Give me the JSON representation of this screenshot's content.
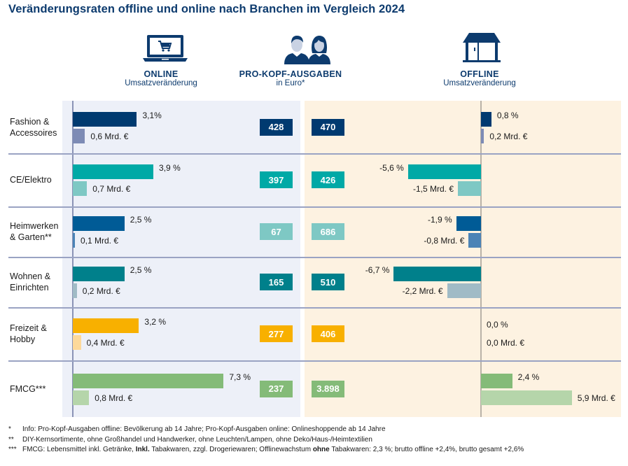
{
  "title": "Veränderungsraten offline und online nach Branchen im Vergleich 2024",
  "headers": {
    "online": {
      "title": "ONLINE",
      "subtitle": "Umsatzveränderung",
      "icon": "laptop-cart-icon"
    },
    "per_capita": {
      "title": "PRO-KOPF-AUSGABEN",
      "subtitle": "in Euro*",
      "icon": "people-icon"
    },
    "offline": {
      "title": "OFFLINE",
      "subtitle": "Umsatzveränderung",
      "icon": "store-icon"
    }
  },
  "chart_data": {
    "type": "bar",
    "title": "Veränderungsraten offline und online nach Branchen im Vergleich 2024",
    "categories": [
      "Fashion & Accessoires",
      "CE/Elektro",
      "Heimwerken & Garten**",
      "Wohnen & Einrichten",
      "Freizeit & Hobby",
      "FMCG***"
    ],
    "series": [
      {
        "name": "Online Umsatzveränderung (%)",
        "values": [
          3.1,
          3.9,
          2.5,
          2.5,
          3.2,
          7.3
        ],
        "labels": [
          "3,1%",
          "3,9 %",
          "2,5 %",
          "2,5 %",
          "3,2 %",
          "7,3 %"
        ]
      },
      {
        "name": "Online Umsatzveränderung (Mrd. €)",
        "values": [
          0.6,
          0.7,
          0.1,
          0.2,
          0.4,
          0.8
        ],
        "labels": [
          "0,6 Mrd. €",
          "0,7 Mrd. €",
          "0,1 Mrd. €",
          "0,2 Mrd. €",
          "0,4 Mrd. €",
          "0,8 Mrd. €"
        ]
      },
      {
        "name": "Pro-Kopf-Ausgaben online (Euro)",
        "values": [
          428,
          397,
          67,
          165,
          277,
          237
        ],
        "labels": [
          "428",
          "397",
          "67",
          "165",
          "277",
          "237"
        ]
      },
      {
        "name": "Pro-Kopf-Ausgaben offline (Euro)",
        "values": [
          470,
          426,
          686,
          510,
          406,
          3898
        ],
        "labels": [
          "470",
          "426",
          "686",
          "510",
          "406",
          "3.898"
        ]
      },
      {
        "name": "Offline Umsatzveränderung (%)",
        "values": [
          0.8,
          -5.6,
          -1.9,
          -6.7,
          0.0,
          2.4
        ],
        "labels": [
          "0,8 %",
          "-5,6 %",
          "-1,9 %",
          "-6,7 %",
          "0,0 %",
          "2,4 %"
        ]
      },
      {
        "name": "Offline Umsatzveränderung (Mrd. €)",
        "values": [
          0.2,
          -1.5,
          -0.8,
          -2.2,
          0.0,
          5.9
        ],
        "labels": [
          "0,2 Mrd. €",
          "-1,5 Mrd. €",
          "-0,8 Mrd. €",
          "-2,2 Mrd. €",
          "0,0 Mrd. €",
          "5,9 Mrd. €"
        ]
      }
    ],
    "colors": {
      "primary": [
        "#003a70",
        "#00a9a6",
        "#005b96",
        "#00808b",
        "#f8b000",
        "#84bb78"
      ],
      "secondary": [
        "#7d8bb5",
        "#7ec8c4",
        "#4b83b6",
        "#a0bbc6",
        "#fdd99a",
        "#b5d5aa"
      ],
      "box": [
        "#003a70",
        "#00a9a6",
        "#7ec8c4",
        "#00808b",
        "#f8b000",
        "#84bb78"
      ]
    },
    "legend": "none",
    "grid": false
  },
  "rows": [
    {
      "label_lines": [
        "Fashion &",
        "Accessoires"
      ]
    },
    {
      "label_lines": [
        "CE/Elektro"
      ]
    },
    {
      "label_lines": [
        "Heimwerken",
        "& Garten**"
      ]
    },
    {
      "label_lines": [
        "Wohnen &",
        "Einrichten"
      ]
    },
    {
      "label_lines": [
        "Freizeit &",
        "Hobby"
      ]
    },
    {
      "label_lines": [
        "FMCG***"
      ]
    }
  ],
  "footnotes": [
    {
      "marker": "*",
      "text": "Info: Pro-Kopf-Ausgaben offline: Bevölkerung ab 14 Jahre; Pro-Kopf-Ausgaben online: Onlineshoppende ab 14 Jahre"
    },
    {
      "marker": "**",
      "text": "DIY-Kernsortimente, ohne Großhandel und Handwerker, ohne Leuchten/Lampen, ohne Deko/Haus-/Heimtextilien"
    },
    {
      "marker": "***",
      "parts": [
        {
          "t": "FMCG: Lebensmittel inkl. Getränke, ",
          "b": false
        },
        {
          "t": "Inkl.",
          "b": true
        },
        {
          "t": " Tabakwaren, zzgl. Drogeriewaren; Offlinewachstum ",
          "b": false
        },
        {
          "t": "ohne",
          "b": true
        },
        {
          "t": " Tabakwaren: 2,3 %; brutto offline +2,4%, brutto gesamt +2,6%",
          "b": false
        }
      ]
    }
  ]
}
